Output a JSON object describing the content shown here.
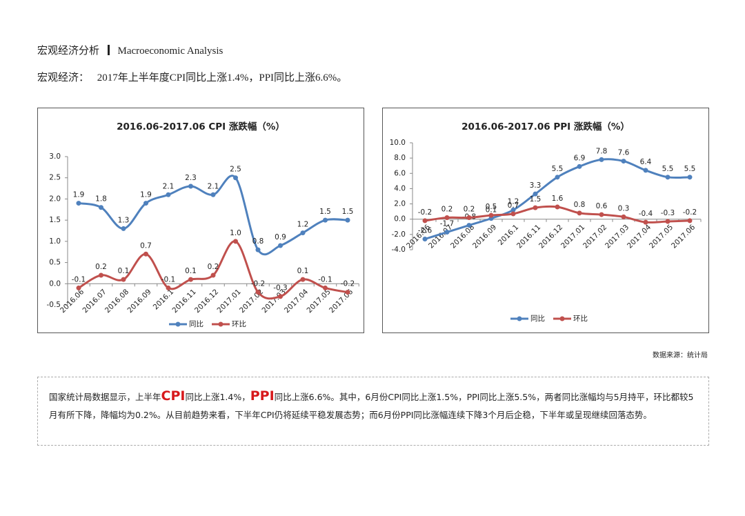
{
  "header": {
    "title": "宏观经济分析",
    "subtitle": "Macroeconomic Analysis",
    "headline_label": "宏观经济：",
    "headline": "2017年上半年度CPI同比上涨1.4%，PPI同比上涨6.6%。"
  },
  "chart_data": [
    {
      "type": "line",
      "title": "2016.06-2017.06 CPI 涨跌幅（%）",
      "categories": [
        "2016.06",
        "2016.07",
        "2016.08",
        "2016.09",
        "2016.1",
        "2016.11",
        "2016.12",
        "2017.01",
        "2017.02",
        "2017.03",
        "2017.04",
        "2017.05",
        "2017.06"
      ],
      "series": [
        {
          "name": "同比",
          "color": "#4f81bd",
          "values": [
            1.9,
            1.8,
            1.3,
            1.9,
            2.1,
            2.3,
            2.1,
            2.5,
            0.8,
            0.9,
            1.2,
            1.5,
            1.5
          ],
          "value_labels": [
            "1.9",
            "1.8",
            "1.3",
            "1.9",
            "2.1",
            "2.3",
            "2.1",
            "2.5",
            "0.8",
            "0.9",
            "1.2",
            "1.5",
            "1.5"
          ]
        },
        {
          "name": "环比",
          "color": "#c0504d",
          "values": [
            -0.1,
            0.2,
            0.1,
            0.7,
            -0.1,
            0.1,
            0.2,
            1.0,
            -0.2,
            -0.3,
            0.1,
            -0.1,
            -0.2
          ],
          "value_labels": [
            "-0.1",
            "0.2",
            "0.1",
            "0.7",
            "-0.1",
            "0.1",
            "0.2",
            "1.0",
            "-0.2",
            "-0.3",
            "0.1",
            "-0.1",
            "-0.2"
          ]
        }
      ],
      "ylim": [
        -0.5,
        3.0
      ],
      "yticks": [
        {
          "value": 3.0,
          "label": "3.0"
        },
        2.5,
        {
          "value": 2.0,
          "label": "2.0"
        },
        1.5,
        {
          "value": 1.0,
          "label": "1.0"
        },
        0.5,
        {
          "value": 0,
          "label": "0.0"
        },
        -0.5
      ]
    },
    {
      "type": "line",
      "title": "2016.06-2017.06 PPI 涨跌幅（%）",
      "categories": [
        "2016.06",
        "2016.07",
        "2016.08",
        "2016.09",
        "2016.1",
        "2016.11",
        "2016.12",
        "2017.01",
        "2017.02",
        "2017.03",
        "2017.04",
        "2017.05",
        "2017.06"
      ],
      "series": [
        {
          "name": "同比",
          "color": "#4f81bd",
          "values": [
            -2.6,
            -1.7,
            -0.8,
            0.1,
            1.2,
            3.3,
            5.5,
            6.9,
            7.8,
            7.6,
            6.4,
            5.5,
            5.5
          ]
        },
        {
          "name": "环比",
          "color": "#c0504d",
          "values": [
            -0.2,
            0.2,
            0.2,
            0.5,
            0.7,
            1.5,
            1.6,
            0.8,
            0.6,
            0.3,
            -0.4,
            -0.3,
            -0.2
          ]
        }
      ],
      "ylim": [
        -4.0,
        10.0
      ],
      "yticks": [
        {
          "value": 10.0,
          "label": "10.0"
        },
        {
          "value": 8.0,
          "label": "8.0"
        },
        {
          "value": 6.0,
          "label": "6.0"
        },
        {
          "value": 4.0,
          "label": "4.0"
        },
        {
          "value": 2.0,
          "label": "2.0"
        },
        {
          "value": 0,
          "label": "0.0"
        },
        {
          "value": -2.0,
          "label": "-2.0"
        },
        {
          "value": -4.0,
          "label": "-4.0"
        }
      ]
    }
  ],
  "source": "数据来源：统计局",
  "summary": {
    "runs": [
      "国家统计局数据显示，上半年",
      "CPI",
      "同比上涨1.4%，",
      "PPI",
      "同比上涨6.6%。其中，6月份CPI同比上涨1.5%，PPI同比上涨5.5%，两者同比涨幅均与5月持平，环比都较5月有所下降，降幅均为0.2%。从目前趋势来看，下半年CPI仍将延续平稳发展态势；而6月份PPI同比涨幅连续下降3个月后企稳，下半年或呈现继续回落态势。"
    ]
  }
}
